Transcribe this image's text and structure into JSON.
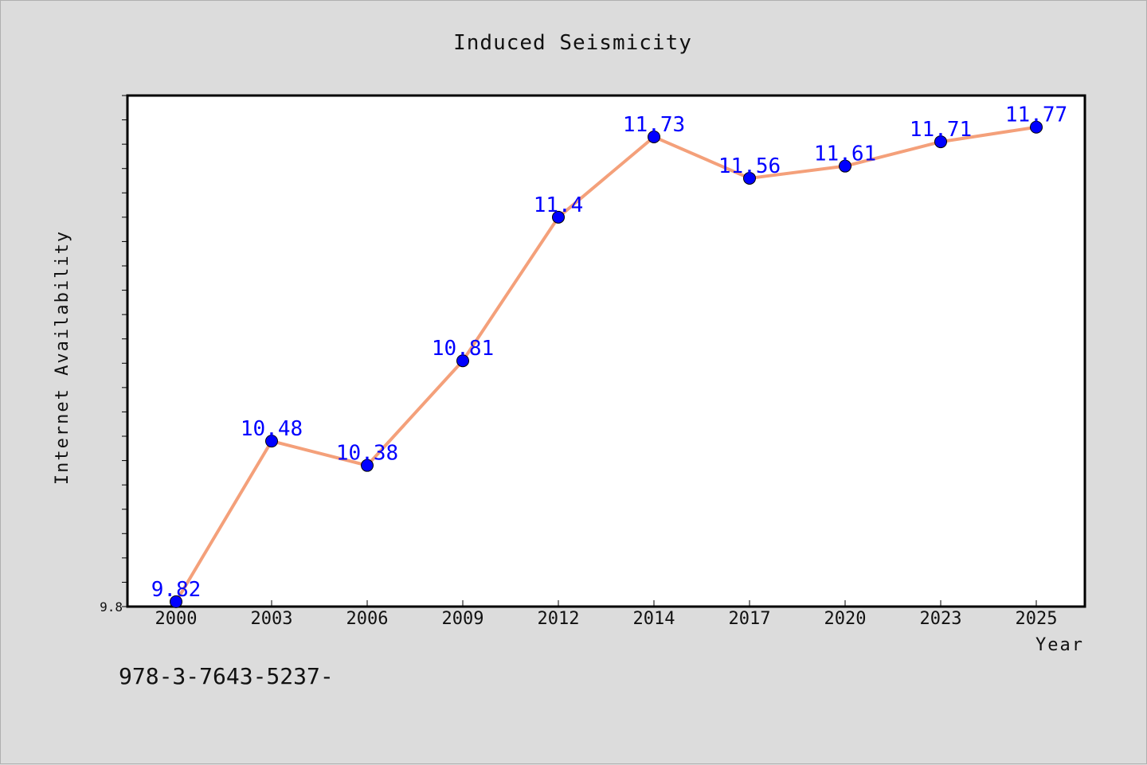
{
  "footer": {
    "code": "978-3-7643-5237-"
  },
  "chart_data": {
    "type": "line",
    "title": "Induced Seismicity",
    "xlabel": "Year",
    "ylabel": "Internet Availability",
    "categories": [
      "2000",
      "2003",
      "2006",
      "2009",
      "2012",
      "2014",
      "2017",
      "2020",
      "2023",
      "2025"
    ],
    "series": [
      {
        "values": [
          9.82,
          10.48,
          10.38,
          10.81,
          11.4,
          11.73,
          11.56,
          11.61,
          11.71,
          11.77
        ]
      }
    ],
    "ylim": [
      9.8,
      11.9
    ],
    "yticks_labeled": [
      "9.8"
    ],
    "line_color": "#f4a07a",
    "marker_color": "#0000ff",
    "label_color": "#0000ff",
    "grid": false
  }
}
